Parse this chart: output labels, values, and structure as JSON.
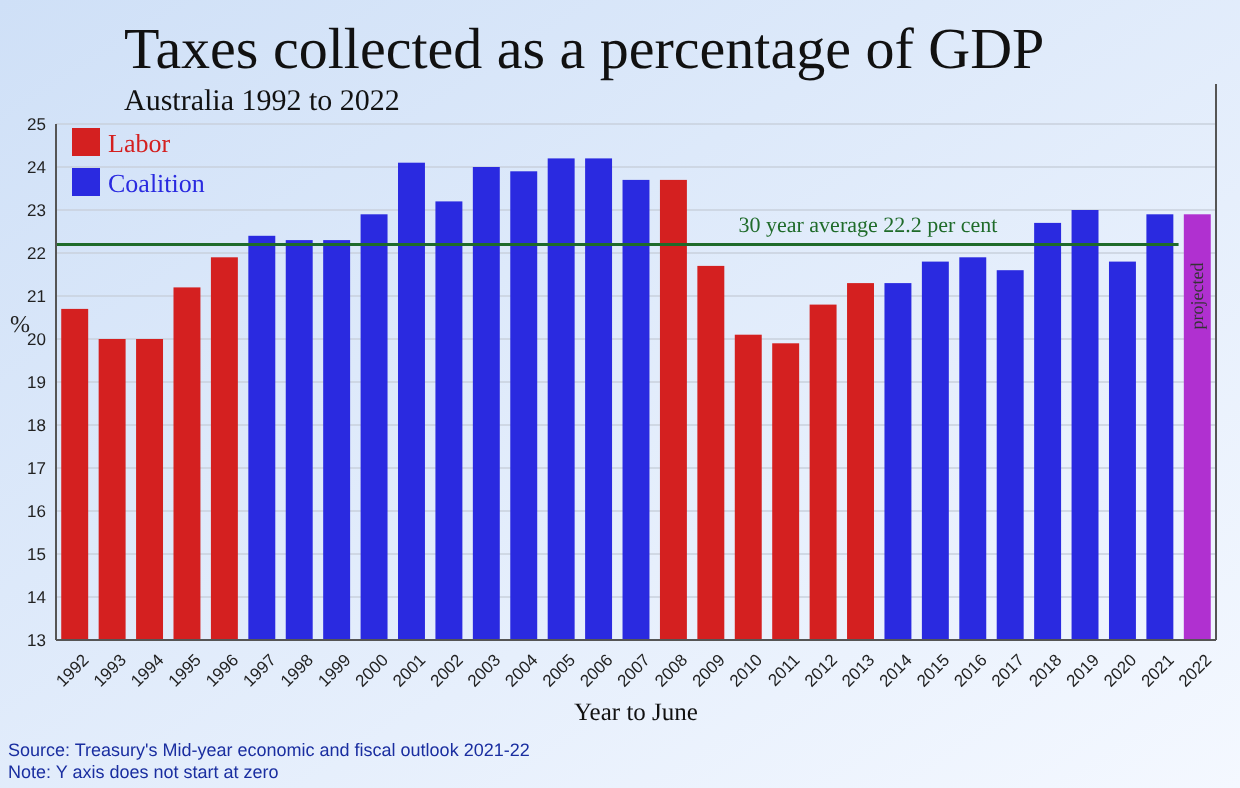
{
  "chart_data": {
    "type": "bar",
    "title": "Taxes collected as a percentage of GDP",
    "subtitle": "Australia 1992 to 2022",
    "xlabel": "Year to June",
    "ylabel": "%",
    "categories": [
      "1992",
      "1993",
      "1994",
      "1995",
      "1996",
      "1997",
      "1998",
      "1999",
      "2000",
      "2001",
      "2002",
      "2003",
      "2004",
      "2005",
      "2006",
      "2007",
      "2008",
      "2009",
      "2010",
      "2011",
      "2012",
      "2013",
      "2014",
      "2015",
      "2016",
      "2017",
      "2018",
      "2019",
      "2020",
      "2021",
      "2022"
    ],
    "stacked": true,
    "series": [
      {
        "name": "Labor",
        "color": "#d42020",
        "values": [
          20.7,
          20.0,
          20.0,
          21.2,
          21.9,
          null,
          null,
          null,
          null,
          null,
          null,
          null,
          null,
          null,
          null,
          null,
          23.7,
          21.7,
          20.1,
          19.9,
          20.8,
          21.3,
          null,
          null,
          null,
          null,
          null,
          null,
          null,
          null,
          null
        ]
      },
      {
        "name": "Coalition",
        "color": "#2a2ae0",
        "values": [
          null,
          null,
          null,
          null,
          null,
          22.4,
          22.3,
          22.3,
          22.9,
          24.1,
          23.2,
          24.0,
          23.9,
          24.2,
          24.2,
          23.7,
          null,
          null,
          null,
          null,
          null,
          null,
          21.3,
          21.8,
          21.9,
          21.6,
          22.7,
          23.0,
          21.8,
          22.9,
          null
        ]
      },
      {
        "color": "#b030d0",
        "values": [
          null,
          null,
          null,
          null,
          null,
          null,
          null,
          null,
          null,
          null,
          null,
          null,
          null,
          null,
          null,
          null,
          null,
          null,
          null,
          null,
          null,
          null,
          null,
          null,
          null,
          null,
          null,
          null,
          null,
          null,
          22.9
        ]
      }
    ],
    "ylim": [
      13,
      25
    ],
    "yticks": [
      13,
      14,
      15,
      16,
      17,
      18,
      19,
      20,
      21,
      22,
      23,
      24,
      25
    ],
    "grid": "y",
    "legend": "top left",
    "ref_lines": [
      {
        "axis": "y",
        "value": 22.2,
        "label": "30 year average 22.2 per cent",
        "color": "#1f6b2a"
      }
    ],
    "annotations": [
      {
        "text": "projected",
        "x": "2022",
        "y": 21
      },
      "Source: Treasury's Mid-year economic and fiscal outlook 2021-22",
      "Note: Y axis does not start at zero"
    ]
  }
}
